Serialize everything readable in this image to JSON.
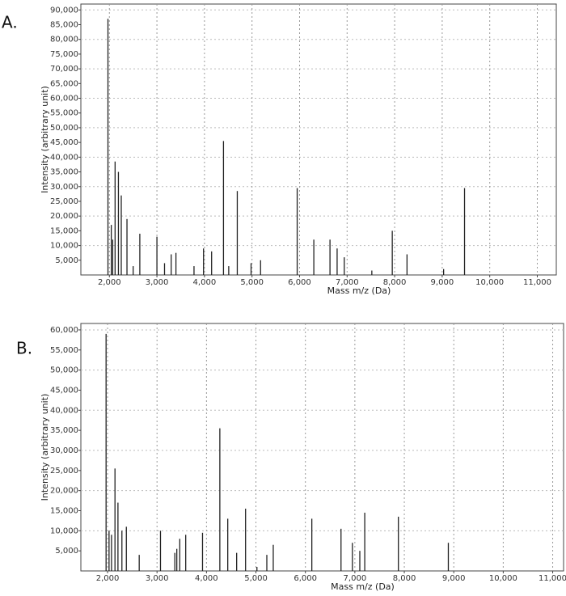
{
  "chart_data": [
    {
      "type": "stem",
      "panel_label": "A.",
      "xlabel": "Mass m/z (Da)",
      "ylabel": "Intensity (arbitrary unit)",
      "color": "#222",
      "grid": true,
      "xlim": [
        1400,
        11400
      ],
      "ylim": [
        0,
        92000
      ],
      "xticks": [
        {
          "value": 2000,
          "label": "2,000"
        },
        {
          "value": 3000,
          "label": "3,000"
        },
        {
          "value": 4000,
          "label": "4,000"
        },
        {
          "value": 5000,
          "label": "5,000"
        },
        {
          "value": 6000,
          "label": "6,000"
        },
        {
          "value": 7000,
          "label": "7,000"
        },
        {
          "value": 8000,
          "label": "8,000"
        },
        {
          "value": 9000,
          "label": "9,000"
        },
        {
          "value": 10000,
          "label": "10,000"
        },
        {
          "value": 11000,
          "label": "11,000"
        }
      ],
      "yticks": [
        {
          "value": 5000,
          "label": "5,000"
        },
        {
          "value": 10000,
          "label": "10,000"
        },
        {
          "value": 15000,
          "label": "15,000"
        },
        {
          "value": 20000,
          "label": "20,000"
        },
        {
          "value": 25000,
          "label": "25,000"
        },
        {
          "value": 30000,
          "label": "30,000"
        },
        {
          "value": 35000,
          "label": "35,000"
        },
        {
          "value": 40000,
          "label": "40,000"
        },
        {
          "value": 45000,
          "label": "45,000"
        },
        {
          "value": 50000,
          "label": "50,000"
        },
        {
          "value": 55000,
          "label": "55,000"
        },
        {
          "value": 60000,
          "label": "60,000"
        },
        {
          "value": 65000,
          "label": "65,000"
        },
        {
          "value": 70000,
          "label": "70,000"
        },
        {
          "value": 75000,
          "label": "75,000"
        },
        {
          "value": 80000,
          "label": "80,000"
        },
        {
          "value": 85000,
          "label": "85,000"
        },
        {
          "value": 90000,
          "label": "90,000"
        }
      ],
      "x": [
        1970,
        2040,
        2070,
        2120,
        2190,
        2250,
        2370,
        2500,
        2640,
        3000,
        3160,
        3300,
        3400,
        3780,
        3980,
        4150,
        4400,
        4510,
        4690,
        4980,
        5180,
        5950,
        6300,
        6640,
        6790,
        6940,
        7520,
        7950,
        8260,
        9030,
        9470
      ],
      "values": [
        87000,
        17000,
        12000,
        38500,
        35000,
        27000,
        19000,
        3000,
        14000,
        13000,
        4000,
        7000,
        7500,
        3000,
        9000,
        8000,
        45500,
        3000,
        28500,
        4000,
        5000,
        29500,
        12000,
        12000,
        9000,
        6000,
        1500,
        15000,
        7000,
        2000,
        29500
      ]
    },
    {
      "type": "stem",
      "panel_label": "B.",
      "xlabel": "Mass m/z (Da)",
      "ylabel": "Intensity (arbitrary unit)",
      "color": "#222",
      "grid": true,
      "xlim": [
        1460,
        11220
      ],
      "ylim": [
        0,
        61600
      ],
      "xticks": [
        {
          "value": 2000,
          "label": "2,000"
        },
        {
          "value": 3000,
          "label": "3,000"
        },
        {
          "value": 4000,
          "label": "4,000"
        },
        {
          "value": 5000,
          "label": "5,000"
        },
        {
          "value": 6000,
          "label": "6,000"
        },
        {
          "value": 7000,
          "label": "7,000"
        },
        {
          "value": 8000,
          "label": "8,000"
        },
        {
          "value": 9000,
          "label": "9,000"
        },
        {
          "value": 10000,
          "label": "10,000"
        },
        {
          "value": 11000,
          "label": "11,000"
        }
      ],
      "yticks": [
        {
          "value": 5000,
          "label": "5,000"
        },
        {
          "value": 10000,
          "label": "10,000"
        },
        {
          "value": 15000,
          "label": "15,000"
        },
        {
          "value": 20000,
          "label": "20,000"
        },
        {
          "value": 25000,
          "label": "25,000"
        },
        {
          "value": 30000,
          "label": "30,000"
        },
        {
          "value": 35000,
          "label": "35,000"
        },
        {
          "value": 40000,
          "label": "40,000"
        },
        {
          "value": 45000,
          "label": "45,000"
        },
        {
          "value": 50000,
          "label": "50,000"
        },
        {
          "value": 55000,
          "label": "55,000"
        },
        {
          "value": 60000,
          "label": "60,000"
        }
      ],
      "x": [
        1970,
        2030,
        2080,
        2150,
        2210,
        2290,
        2380,
        2640,
        3070,
        3360,
        3400,
        3460,
        3580,
        3920,
        4270,
        4430,
        4610,
        4790,
        5020,
        5220,
        5350,
        6130,
        6720,
        6950,
        7100,
        7200,
        7880,
        8890
      ],
      "values": [
        59000,
        10000,
        9000,
        25500,
        17000,
        10000,
        11000,
        4000,
        10000,
        4500,
        5500,
        8000,
        9000,
        9500,
        35500,
        13000,
        4500,
        15500,
        1000,
        4000,
        6500,
        13000,
        10500,
        7000,
        5000,
        14500,
        13500,
        7000
      ]
    }
  ]
}
